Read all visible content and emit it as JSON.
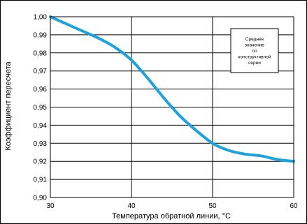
{
  "chart_data": {
    "type": "line",
    "xlabel": "Температура обратной линии, °C",
    "ylabel": "Коэффициент пересчета",
    "xlim": [
      30,
      60
    ],
    "ylim": [
      0.9,
      1.0
    ],
    "x_ticks": [
      "30",
      "40",
      "50",
      "60"
    ],
    "y_ticks": [
      "0,90",
      "0,91",
      "0,92",
      "0,93",
      "0,94",
      "0,95",
      "0,96",
      "0,97",
      "0,98",
      "0,99",
      "1,00"
    ],
    "grid": true,
    "line_color": "#1aa3e0",
    "annotation_lines": [
      "Среднее",
      "значение",
      "по",
      "конструктивной",
      "серии"
    ],
    "series": [
      {
        "x": [
          30,
          32,
          34,
          36,
          38,
          40,
          42,
          44,
          46,
          48,
          50,
          52,
          54,
          56,
          58,
          60
        ],
        "values": [
          1.0,
          0.996,
          0.992,
          0.988,
          0.983,
          0.976,
          0.966,
          0.955,
          0.945,
          0.937,
          0.93,
          0.926,
          0.924,
          0.923,
          0.921,
          0.92
        ]
      }
    ]
  }
}
